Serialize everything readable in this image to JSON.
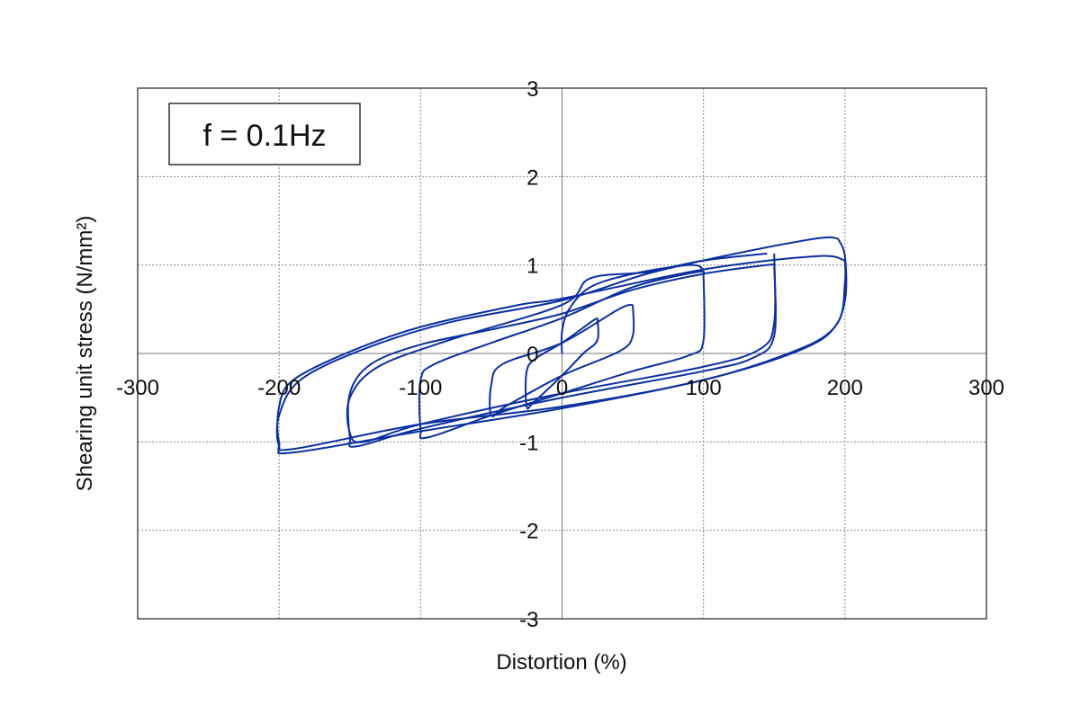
{
  "chart_data": {
    "type": "line",
    "title": "",
    "annotation": "f = 0.1Hz",
    "xlabel": "Distortion (%)",
    "ylabel": "Shearing unit stress (N/mm²)",
    "xlim": [
      -300,
      300
    ],
    "ylim": [
      -3,
      3
    ],
    "xticks": [
      -300,
      -200,
      -100,
      0,
      100,
      200,
      300
    ],
    "yticks": [
      -3,
      -2,
      -1,
      0,
      1,
      2,
      3
    ],
    "xtick_labels": [
      "-300",
      "-200",
      "-100",
      "0",
      "100",
      "200",
      "300"
    ],
    "ytick_labels": [
      "-3",
      "-2",
      "-1",
      "0",
      "1",
      "2",
      "3"
    ],
    "grid": true,
    "line_color": "#0a2fa0",
    "series": [
      {
        "points": [
          [
            0,
            0
          ],
          [
            0,
            0.25
          ],
          [
            5,
            0.5
          ],
          [
            20,
            0.75
          ],
          [
            50,
            0.9
          ],
          [
            90,
            1.0
          ],
          [
            100,
            0.95
          ]
        ]
      },
      {
        "points": [
          [
            25,
            0.4
          ],
          [
            25,
            0.15
          ],
          [
            15,
            0.0
          ],
          [
            0,
            -0.25
          ],
          [
            -20,
            -0.55
          ],
          [
            -25,
            -0.6
          ],
          [
            -25,
            -0.2
          ],
          [
            -18,
            -0.05
          ],
          [
            0,
            0.12
          ],
          [
            20,
            0.35
          ],
          [
            25,
            0.4
          ]
        ]
      },
      {
        "points": [
          [
            50,
            0.55
          ],
          [
            50,
            0.2
          ],
          [
            40,
            0.02
          ],
          [
            0,
            -0.25
          ],
          [
            -40,
            -0.6
          ],
          [
            -50,
            -0.7
          ],
          [
            -50,
            -0.35
          ],
          [
            -42,
            -0.12
          ],
          [
            0,
            0.12
          ],
          [
            40,
            0.5
          ],
          [
            50,
            0.55
          ]
        ]
      },
      {
        "points": [
          [
            100,
            0.9
          ],
          [
            100,
            0.15
          ],
          [
            90,
            -0.02
          ],
          [
            50,
            -0.2
          ],
          [
            0,
            -0.45
          ],
          [
            -50,
            -0.7
          ],
          [
            -95,
            -0.95
          ],
          [
            -100,
            -0.85
          ],
          [
            -100,
            -0.3
          ],
          [
            -90,
            -0.12
          ],
          [
            -50,
            0.12
          ],
          [
            0,
            0.4
          ],
          [
            50,
            0.75
          ],
          [
            95,
            0.92
          ],
          [
            100,
            0.9
          ]
        ]
      },
      {
        "points": [
          [
            150,
            1.0
          ],
          [
            150,
            0.2
          ],
          [
            135,
            -0.05
          ],
          [
            100,
            -0.2
          ],
          [
            0,
            -0.5
          ],
          [
            -100,
            -0.85
          ],
          [
            -145,
            -1.05
          ],
          [
            -150,
            -0.95
          ],
          [
            -150,
            -0.45
          ],
          [
            -135,
            -0.12
          ],
          [
            -100,
            0.1
          ],
          [
            -50,
            0.27
          ],
          [
            0,
            0.45
          ],
          [
            50,
            0.72
          ],
          [
            100,
            0.9
          ],
          [
            145,
            1.0
          ],
          [
            150,
            1.0
          ]
        ]
      },
      {
        "points": [
          [
            150,
            1.13
          ],
          [
            150,
            0.35
          ],
          [
            140,
            0.05
          ],
          [
            100,
            -0.15
          ],
          [
            0,
            -0.45
          ],
          [
            -100,
            -0.8
          ],
          [
            -140,
            -1.0
          ],
          [
            -150,
            -0.9
          ],
          [
            -150,
            -0.5
          ],
          [
            -130,
            -0.15
          ],
          [
            -80,
            0.15
          ],
          [
            0,
            0.55
          ],
          [
            20,
            0.85
          ],
          [
            60,
            0.92
          ],
          [
            100,
            1.05
          ],
          [
            145,
            1.13
          ]
        ]
      },
      {
        "points": [
          [
            200,
            1.05
          ],
          [
            200,
            0.8
          ],
          [
            195,
            0.35
          ],
          [
            170,
            0.05
          ],
          [
            100,
            -0.3
          ],
          [
            0,
            -0.6
          ],
          [
            -100,
            -0.8
          ],
          [
            -190,
            -1.08
          ],
          [
            -200,
            -1.0
          ],
          [
            -200,
            -0.6
          ],
          [
            -190,
            -0.3
          ],
          [
            -150,
            0.02
          ],
          [
            -100,
            0.3
          ],
          [
            -30,
            0.55
          ],
          [
            0,
            0.62
          ],
          [
            100,
            0.95
          ],
          [
            180,
            1.1
          ],
          [
            200,
            1.05
          ]
        ]
      },
      {
        "points": [
          [
            195,
            1.3
          ],
          [
            200,
            1.1
          ],
          [
            200,
            0.6
          ],
          [
            190,
            0.25
          ],
          [
            160,
            0.0
          ],
          [
            100,
            -0.3
          ],
          [
            0,
            -0.62
          ],
          [
            -100,
            -0.88
          ],
          [
            -190,
            -1.12
          ],
          [
            -200,
            -1.05
          ],
          [
            -200,
            -0.7
          ],
          [
            -185,
            -0.3
          ],
          [
            -140,
            0.05
          ],
          [
            -80,
            0.35
          ],
          [
            0,
            0.6
          ],
          [
            60,
            0.9
          ],
          [
            120,
            1.12
          ],
          [
            180,
            1.3
          ],
          [
            195,
            1.3
          ]
        ]
      }
    ]
  }
}
